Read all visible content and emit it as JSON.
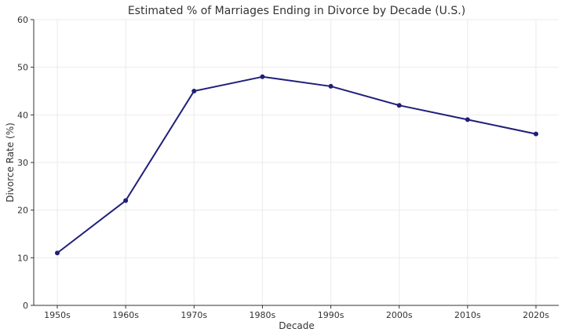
{
  "chart_data": {
    "type": "line",
    "title": "Estimated % of Marriages Ending in Divorce by Decade (U.S.)",
    "xlabel": "Decade",
    "ylabel": "Divorce Rate (%)",
    "categories": [
      "1950s",
      "1960s",
      "1970s",
      "1980s",
      "1990s",
      "2000s",
      "2010s",
      "2020s"
    ],
    "series": [
      {
        "values": [
          11,
          22,
          45,
          48,
          46,
          42,
          39,
          36
        ],
        "color": "#1f1f7a"
      }
    ],
    "ylim": [
      0,
      60
    ],
    "yticks": [
      "0",
      "10",
      "20",
      "30",
      "40",
      "50",
      "60"
    ],
    "grid": true,
    "marker": "circle"
  }
}
